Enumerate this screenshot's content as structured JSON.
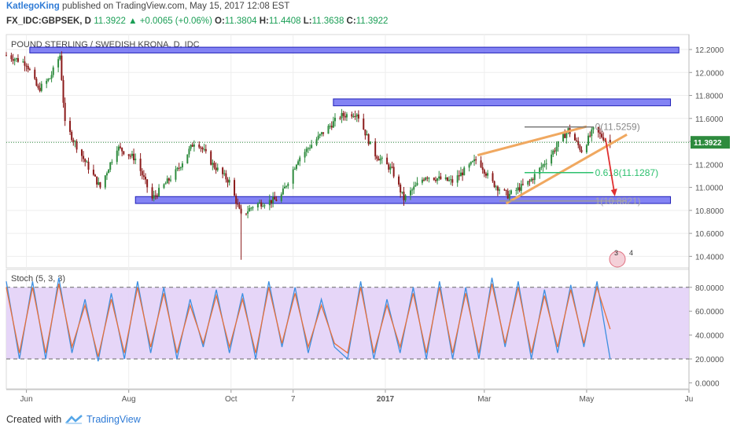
{
  "header": {
    "author": "KatlegoKing",
    "published_text": "published on TradingView.com, May 15, 2017 12:08 EST",
    "symbol_line": {
      "symbol": "FX_IDC:GBPSEK, D",
      "last": "11.3922",
      "change_arrow": "▲",
      "change": "+0.0065 (+0.06%)",
      "o_label": "O:",
      "o_value": "11.3804",
      "h_label": "H:",
      "h_value": "11.4408",
      "l_label": "L:",
      "l_value": "11.3638",
      "c_label": "C:",
      "c_value": "11.3922"
    }
  },
  "chart_data": [
    {
      "type": "candlestick",
      "title": "POUND STERLING / SWEDISH KRONA, D, IDC",
      "y_axis_labels": [
        "12.2000",
        "12.0000",
        "11.8000",
        "11.6000",
        "11.4000",
        "11.2000",
        "11.0000",
        "10.8000",
        "10.6000",
        "10.4000"
      ],
      "ylim": [
        10.3,
        12.33
      ],
      "last_price_label": "11.3922",
      "x_axis_labels": [
        "Jun",
        "Aug",
        "Oct",
        "7",
        "2017",
        "Mar",
        "May",
        "Ju"
      ],
      "x_date_range": [
        "2016-05-20",
        "2017-07-01"
      ],
      "series_closes_approx": [
        {
          "date": "2016-05-20",
          "close": 12.15
        },
        {
          "date": "2016-06-01",
          "close": 12.08
        },
        {
          "date": "2016-06-08",
          "close": 11.85
        },
        {
          "date": "2016-06-15",
          "close": 11.95
        },
        {
          "date": "2016-06-21",
          "close": 12.15
        },
        {
          "date": "2016-06-24",
          "close": 11.55
        },
        {
          "date": "2016-07-05",
          "close": 11.25
        },
        {
          "date": "2016-07-15",
          "close": 11.0
        },
        {
          "date": "2016-07-25",
          "close": 11.35
        },
        {
          "date": "2016-08-05",
          "close": 11.25
        },
        {
          "date": "2016-08-15",
          "close": 10.9
        },
        {
          "date": "2016-08-30",
          "close": 11.15
        },
        {
          "date": "2016-09-10",
          "close": 11.42
        },
        {
          "date": "2016-09-20",
          "close": 11.2
        },
        {
          "date": "2016-09-30",
          "close": 11.05
        },
        {
          "date": "2016-10-07",
          "close": 10.75
        },
        {
          "date": "2016-10-15",
          "close": 10.85
        },
        {
          "date": "2016-10-30",
          "close": 10.9
        },
        {
          "date": "2016-11-10",
          "close": 11.25
        },
        {
          "date": "2016-11-25",
          "close": 11.48
        },
        {
          "date": "2016-12-05",
          "close": 11.62
        },
        {
          "date": "2016-12-15",
          "close": 11.65
        },
        {
          "date": "2016-12-25",
          "close": 11.3
        },
        {
          "date": "2017-01-05",
          "close": 11.15
        },
        {
          "date": "2017-01-12",
          "close": 10.9
        },
        {
          "date": "2017-01-25",
          "close": 11.1
        },
        {
          "date": "2017-02-10",
          "close": 11.05
        },
        {
          "date": "2017-02-25",
          "close": 11.25
        },
        {
          "date": "2017-03-05",
          "close": 11.05
        },
        {
          "date": "2017-03-15",
          "close": 10.93
        },
        {
          "date": "2017-03-28",
          "close": 11.05
        },
        {
          "date": "2017-04-08",
          "close": 11.25
        },
        {
          "date": "2017-04-20",
          "close": 11.5
        },
        {
          "date": "2017-04-28",
          "close": 11.32
        },
        {
          "date": "2017-05-05",
          "close": 11.5
        },
        {
          "date": "2017-05-15",
          "close": 11.39
        }
      ],
      "zones": [
        {
          "y_range": [
            12.17,
            12.22
          ],
          "from": "2016-06-03",
          "to": "2017-06-25"
        },
        {
          "y_range": [
            11.71,
            11.77
          ],
          "from": "2016-12-01",
          "to": "2017-06-20"
        },
        {
          "y_range": [
            10.86,
            10.92
          ],
          "from": "2016-08-05",
          "to": "2017-06-20"
        }
      ],
      "fibonacci_labels": [
        {
          "text": "0(11.5259)",
          "value": 11.5259
        },
        {
          "text": "0.618(11.1287)",
          "value": 11.1287
        },
        {
          "text": "1(10.8821)",
          "value": 10.8821
        }
      ],
      "grid": true
    },
    {
      "type": "line",
      "title": "Stoch (5, 3, 3)",
      "y_axis_labels": [
        "80.0000",
        "60.0000",
        "40.0000",
        "20.0000",
        "0.0000"
      ],
      "ylim": [
        -5,
        95
      ],
      "reference_lines": [
        80,
        20
      ],
      "grid": true,
      "series": [
        {
          "color": "#3d8fe0",
          "values_approx": [
            85,
            20,
            85,
            20,
            88,
            25,
            70,
            18,
            75,
            20,
            85,
            25,
            80,
            20,
            70,
            30,
            78,
            25,
            75,
            20,
            85,
            30,
            80,
            25,
            70,
            30,
            20,
            85,
            20,
            70,
            25,
            80,
            20,
            85,
            20,
            80,
            20,
            88,
            30,
            85,
            20,
            78,
            25,
            82,
            30,
            85,
            20
          ]
        },
        {
          "color": "#e8703a",
          "values_approx": [
            80,
            25,
            80,
            25,
            83,
            30,
            65,
            22,
            70,
            25,
            80,
            30,
            75,
            25,
            65,
            33,
            73,
            30,
            70,
            25,
            80,
            33,
            75,
            30,
            65,
            33,
            25,
            80,
            25,
            65,
            30,
            75,
            25,
            80,
            25,
            75,
            25,
            83,
            33,
            80,
            25,
            73,
            30,
            78,
            33,
            80,
            45
          ]
        }
      ]
    }
  ],
  "footer": {
    "created_with": "Created with",
    "brand": "TradingView"
  },
  "colors": {
    "zone_fill": "#5959f0",
    "zone_stroke": "#2121b8",
    "candle_up": "#2e8b3e",
    "candle_down": "#8b1a1a",
    "stoch_bg": "#e3d2f7",
    "wedge": "#f0a860",
    "fib_green": "#2cc06e",
    "arrow_red": "#e03030",
    "last_price_bg": "#2e8b3e"
  }
}
